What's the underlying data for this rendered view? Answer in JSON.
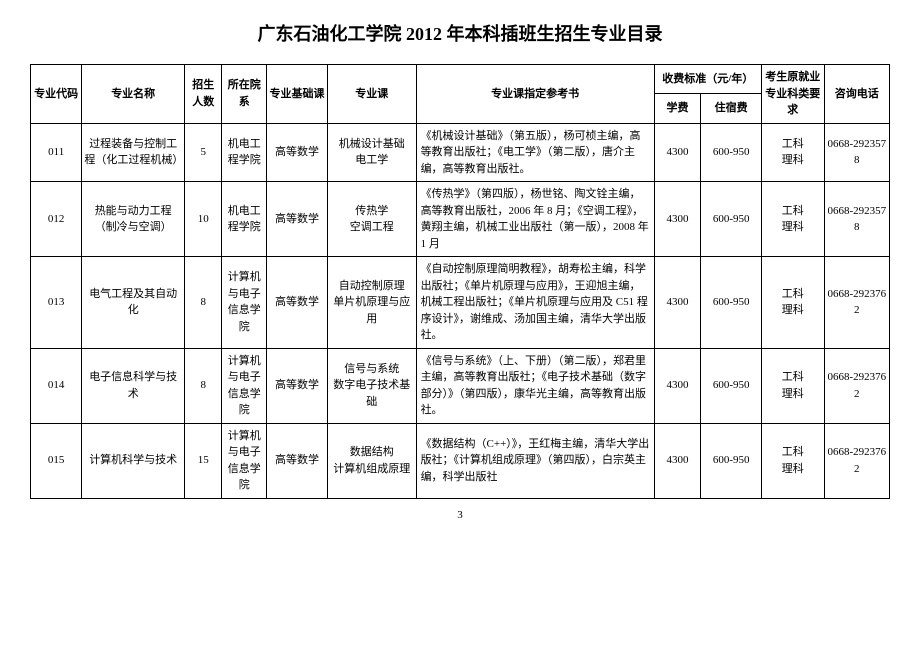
{
  "title": "广东石油化工学院 2012 年本科插班生招生专业目录",
  "page_number": "3",
  "header": {
    "code": "专业代码",
    "name": "专业名称",
    "num": "招生人数",
    "dept": "所在院系",
    "basic": "专业基础课",
    "course": "专业课",
    "ref": "专业课指定参考书",
    "fee_group": "收费标准（元/年）",
    "fee1": "学费",
    "fee2": "住宿费",
    "req": "考生原就业专业科类要求",
    "tel": "咨询电话"
  },
  "rows": [
    {
      "code": "011",
      "name": "过程装备与控制工程（化工过程机械）",
      "num": "5",
      "dept": "机电工程学院",
      "basic": "高等数学",
      "course": "机械设计基础\n电工学",
      "ref": "《机械设计基础》（第五版），杨可桢主编，高等教育出版社；《电工学》（第二版），唐介主编，高等教育出版社。",
      "fee1": "4300",
      "fee2": "600-950",
      "req": "工科\n理科",
      "tel": "0668-2923578"
    },
    {
      "code": "012",
      "name": "热能与动力工程（制冷与空调）",
      "num": "10",
      "dept": "机电工程学院",
      "basic": "高等数学",
      "course": "传热学\n空调工程",
      "ref": "《传热学》（第四版），杨世铭、陶文铨主编，高等教育出版社，2006 年 8 月；《空调工程》，黄翔主编，机械工业出版社（第一版），2008 年 1 月",
      "fee1": "4300",
      "fee2": "600-950",
      "req": "工科\n理科",
      "tel": "0668-2923578"
    },
    {
      "code": "013",
      "name": "电气工程及其自动化",
      "num": "8",
      "dept": "计算机与电子信息学院",
      "basic": "高等数学",
      "course": "自动控制原理\n单片机原理与应用",
      "ref": "《自动控制原理简明教程》，胡寿松主编，科学出版社；《单片机原理与应用》，王迎旭主编，机械工程出版社；《单片机原理与应用及 C51 程序设计》，谢维成、汤加国主编，清华大学出版社。",
      "fee1": "4300",
      "fee2": "600-950",
      "req": "工科\n理科",
      "tel": "0668-2923762"
    },
    {
      "code": "014",
      "name": "电子信息科学与技术",
      "num": "8",
      "dept": "计算机与电子信息学院",
      "basic": "高等数学",
      "course": "信号与系统\n数字电子技术基础",
      "ref": "《信号与系统》（上、下册）（第二版），郑君里主编，高等教育出版社；《电子技术基础（数字部分）》（第四版），康华光主编，高等教育出版社。",
      "fee1": "4300",
      "fee2": "600-950",
      "req": "工科\n理科",
      "tel": "0668-2923762"
    },
    {
      "code": "015",
      "name": "计算机科学与技术",
      "num": "15",
      "dept": "计算机与电子信息学院",
      "basic": "高等数学",
      "course": "数据结构\n计算机组成原理",
      "ref": "《数据结构（C++）》，王红梅主编，清华大学出版社；《计算机组成原理》（第四版），白宗英主编，科学出版社",
      "fee1": "4300",
      "fee2": "600-950",
      "req": "工科\n理科",
      "tel": "0668-2923762"
    }
  ]
}
